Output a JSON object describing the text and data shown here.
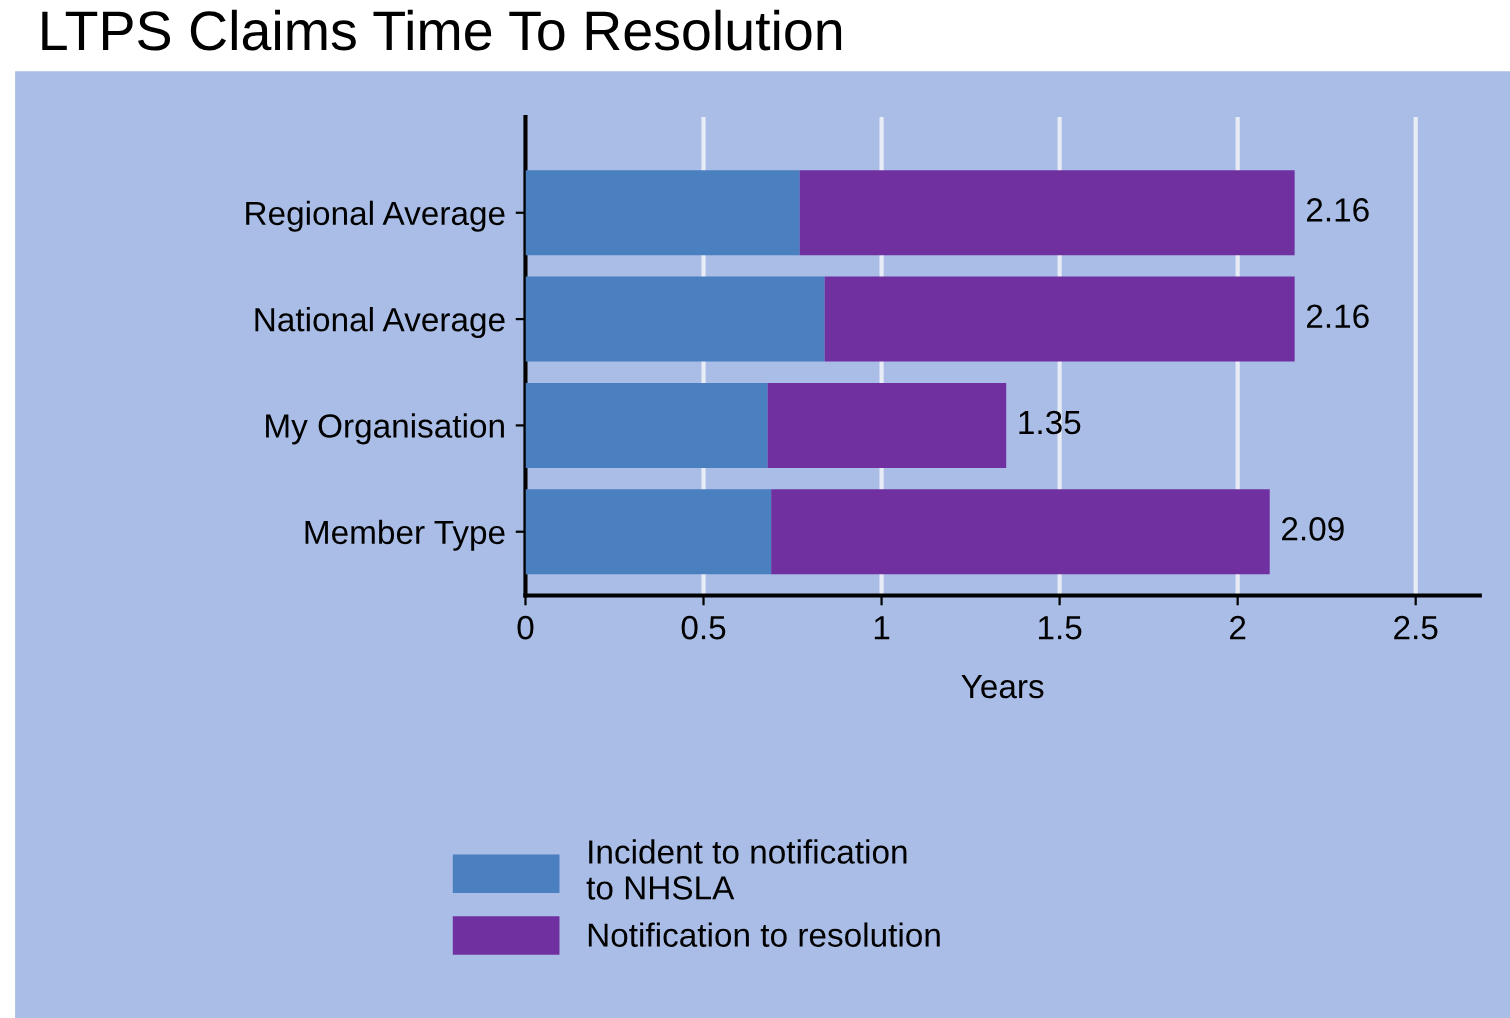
{
  "chart_data": {
    "type": "bar",
    "orientation": "horizontal",
    "stacked": true,
    "title": "LTPS Claims Time To Resolution",
    "xlabel": "Years",
    "categories": [
      "Regional Average",
      "National Average",
      "My Organisation",
      "Member Type"
    ],
    "series": [
      {
        "name": "Incident to notification\nto NHSLA",
        "color": "#4a7fc0",
        "values": [
          0.77,
          0.84,
          0.68,
          0.69
        ]
      },
      {
        "name": "Notification to resolution",
        "color": "#7030a0",
        "values": [
          1.39,
          1.32,
          0.67,
          1.4
        ]
      }
    ],
    "totals": [
      "2.16",
      "2.16",
      "1.35",
      "2.09"
    ],
    "xlim": [
      0,
      2.68
    ],
    "xticks": [
      0,
      0.5,
      1,
      1.5,
      2,
      2.5
    ],
    "grid": "x",
    "legend": "bottom"
  }
}
